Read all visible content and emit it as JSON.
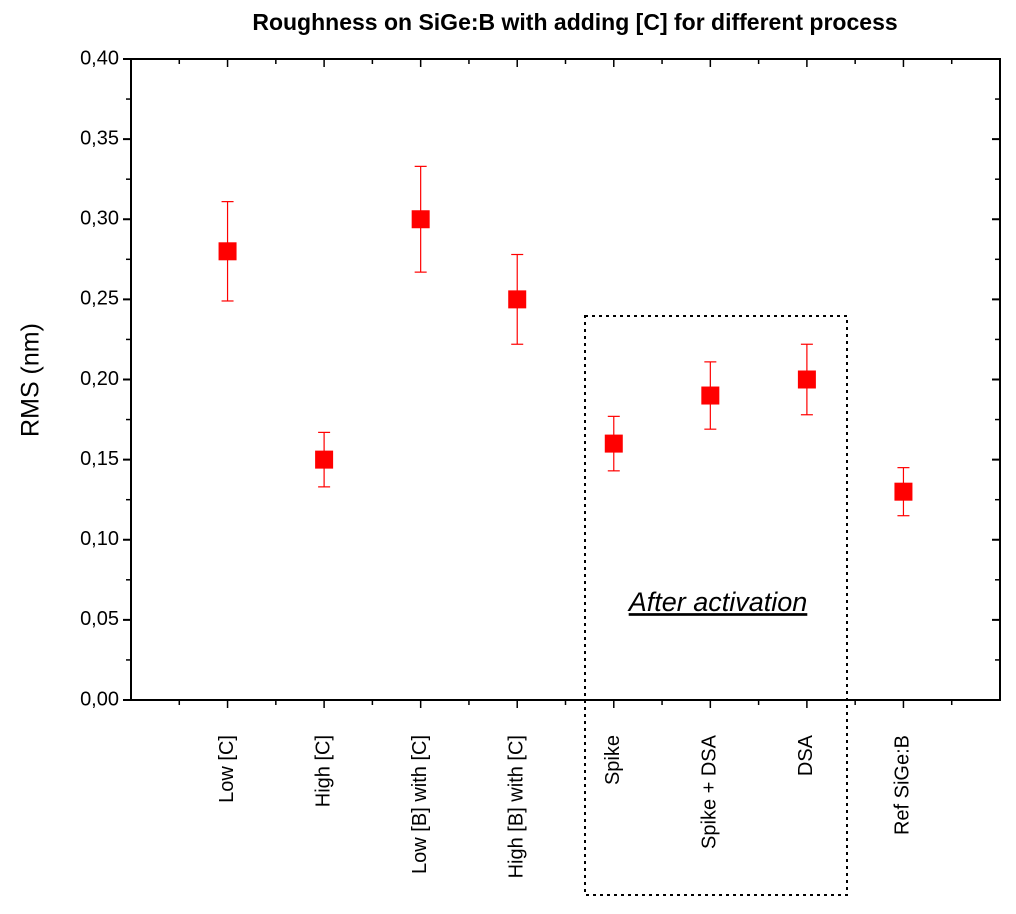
{
  "chart_data": {
    "type": "errorbar",
    "title": "Roughness on SiGe:B with adding [C] for different process",
    "ylabel": "RMS (nm)",
    "categories": [
      "Low [C]",
      "High [C]",
      "Low [B] with [C]",
      "High [B] with [C]",
      "Spike",
      "Spike + DSA",
      "DSA",
      "Ref SiGe:B"
    ],
    "values": [
      0.28,
      0.15,
      0.3,
      0.25,
      0.16,
      0.19,
      0.2,
      0.13
    ],
    "errors": [
      0.031,
      0.017,
      0.033,
      0.028,
      0.017,
      0.021,
      0.022,
      0.015
    ],
    "color": "#ff0000",
    "ylim": [
      0,
      0.4
    ],
    "yticks": [
      {
        "value": 0,
        "label": "0,00"
      },
      {
        "value": 0.05,
        "label": "0,05"
      },
      {
        "value": 0.1,
        "label": "0,10"
      },
      {
        "value": 0.15,
        "label": "0,15"
      },
      {
        "value": 0.2,
        "label": "0,20"
      },
      {
        "value": 0.25,
        "label": "0,25"
      },
      {
        "value": 0.3,
        "label": "0,30"
      },
      {
        "value": 0.35,
        "label": "0,35"
      },
      {
        "value": 0.4,
        "label": "0,40"
      }
    ],
    "annotation": "After activation"
  }
}
